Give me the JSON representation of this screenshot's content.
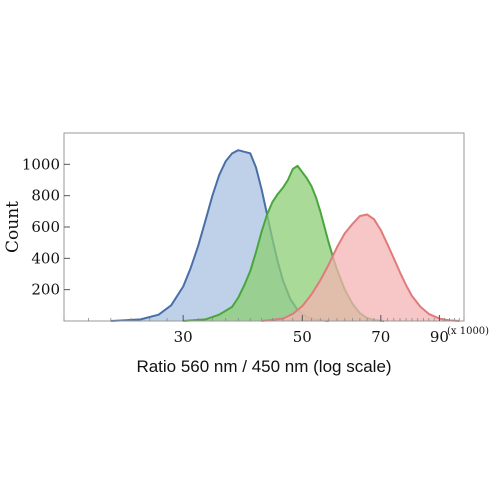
{
  "chart_data": {
    "type": "area",
    "xlabel": "Ratio 560 nm / 450 nm (log scale)",
    "ylabel": "Count",
    "x_multiplier": "(x 1000)",
    "x_scale": "log",
    "xlim": [
      18,
      100
    ],
    "ylim": [
      0,
      1200
    ],
    "x_ticks": [
      30,
      50,
      70,
      90
    ],
    "x_tick_labels": [
      "30",
      "50",
      "70",
      "90"
    ],
    "y_ticks": [
      200,
      400,
      600,
      800,
      1000
    ],
    "y_tick_labels": [
      "200",
      "400",
      "600",
      "800",
      "1000"
    ],
    "grid": false,
    "legend": "none",
    "series": [
      {
        "color": "#4a6fa8",
        "fill": "#a9c1e0",
        "x": [
          22,
          25,
          27,
          28.5,
          30,
          31,
          32,
          33,
          34,
          35,
          36,
          37,
          38,
          39,
          40,
          41,
          42,
          43,
          44,
          45,
          46,
          47.5,
          49,
          51,
          53,
          56
        ],
        "y": [
          0,
          10,
          40,
          100,
          220,
          340,
          480,
          640,
          800,
          930,
          1020,
          1070,
          1090,
          1080,
          1070,
          980,
          840,
          680,
          520,
          380,
          260,
          140,
          70,
          25,
          8,
          0
        ]
      },
      {
        "color": "#4aa63c",
        "fill": "#8ccd74",
        "x": [
          30,
          33,
          35,
          37,
          38,
          39,
          40,
          41,
          42,
          43,
          44,
          45,
          46,
          47,
          48,
          49,
          50,
          51,
          52,
          53,
          54,
          55,
          56,
          57,
          58,
          60,
          62,
          64,
          66,
          68,
          71
        ],
        "y": [
          0,
          10,
          40,
          90,
          150,
          230,
          320,
          440,
          570,
          680,
          760,
          810,
          850,
          900,
          970,
          990,
          950,
          910,
          860,
          790,
          700,
          600,
          500,
          410,
          330,
          200,
          110,
          50,
          20,
          6,
          0
        ]
      },
      {
        "color": "#e07b7b",
        "fill": "#f4b3b3",
        "x": [
          42,
          46,
          48,
          50,
          52,
          54,
          56,
          58,
          60,
          62,
          64,
          66,
          68,
          70,
          72,
          74,
          76,
          78,
          80,
          83,
          86,
          90,
          94,
          98
        ],
        "y": [
          0,
          15,
          45,
          95,
          170,
          260,
          360,
          470,
          560,
          620,
          670,
          680,
          650,
          580,
          490,
          400,
          310,
          230,
          160,
          90,
          45,
          15,
          4,
          0
        ]
      }
    ]
  }
}
